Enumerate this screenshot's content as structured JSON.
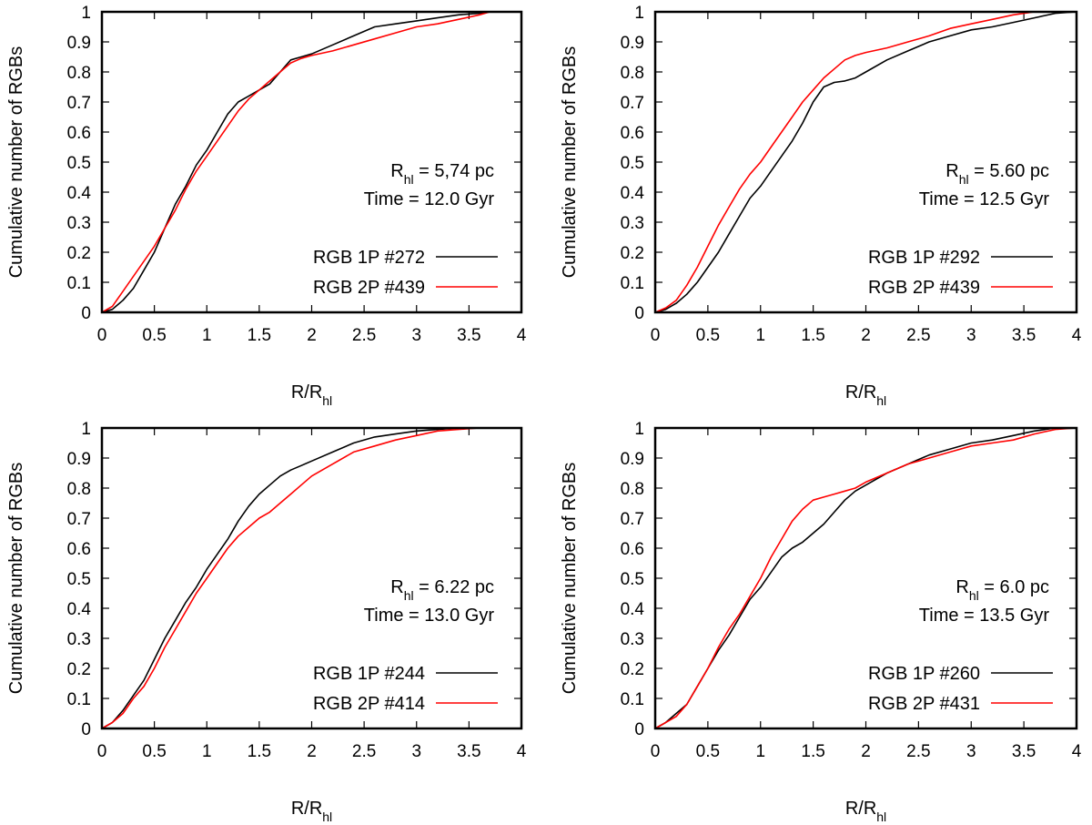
{
  "figure": {
    "background": "#ffffff"
  },
  "chart_data": [
    {
      "type": "line",
      "panel": "top-left",
      "xlabel": "R/R",
      "xlabel_sub": "hl",
      "ylabel": "Cumulative number of RGBs",
      "xlim": [
        0,
        4
      ],
      "ylim": [
        0,
        1
      ],
      "xticks": [
        0,
        0.5,
        1,
        1.5,
        2,
        2.5,
        3,
        3.5,
        4
      ],
      "xtick_labels": [
        "0",
        "0.5",
        "1",
        "1.5",
        "2",
        "2.5",
        "3",
        "3.5",
        "4"
      ],
      "yticks": [
        0,
        0.1,
        0.2,
        0.3,
        0.4,
        0.5,
        0.6,
        0.7,
        0.8,
        0.9,
        1
      ],
      "ytick_labels": [
        "0",
        "0.1",
        "0.2",
        "0.3",
        "0.4",
        "0.5",
        "0.6",
        "0.7",
        "0.8",
        "0.9",
        "1"
      ],
      "annotation": {
        "r_prefix": "R",
        "r_sub": "hl",
        "r_value": " = 5,74 pc",
        "time": "Time = 12.0 Gyr"
      },
      "legend_position": "middle-right",
      "series": [
        {
          "name": "RGB 1P #272",
          "color": "#000000",
          "x": [
            0,
            0.1,
            0.2,
            0.3,
            0.4,
            0.5,
            0.6,
            0.7,
            0.8,
            0.9,
            1.0,
            1.1,
            1.2,
            1.3,
            1.4,
            1.5,
            1.6,
            1.7,
            1.8,
            1.9,
            2.0,
            2.2,
            2.4,
            2.6,
            2.8,
            3.0,
            3.2,
            3.4,
            3.6,
            3.7,
            3.8,
            4.0
          ],
          "y": [
            0,
            0.01,
            0.04,
            0.08,
            0.14,
            0.2,
            0.28,
            0.36,
            0.42,
            0.49,
            0.54,
            0.6,
            0.66,
            0.7,
            0.72,
            0.74,
            0.76,
            0.8,
            0.84,
            0.85,
            0.86,
            0.89,
            0.92,
            0.95,
            0.96,
            0.97,
            0.98,
            0.99,
            0.995,
            1.0,
            1.0,
            1.0
          ]
        },
        {
          "name": "RGB 2P #439",
          "color": "#ff0000",
          "x": [
            0,
            0.1,
            0.2,
            0.3,
            0.4,
            0.5,
            0.6,
            0.7,
            0.8,
            0.9,
            1.0,
            1.1,
            1.2,
            1.3,
            1.4,
            1.5,
            1.6,
            1.7,
            1.8,
            1.9,
            2.0,
            2.2,
            2.4,
            2.6,
            2.8,
            3.0,
            3.2,
            3.4,
            3.6,
            3.7,
            3.8,
            4.0
          ],
          "y": [
            0,
            0.02,
            0.07,
            0.12,
            0.17,
            0.22,
            0.28,
            0.34,
            0.41,
            0.47,
            0.52,
            0.57,
            0.62,
            0.67,
            0.71,
            0.74,
            0.77,
            0.8,
            0.83,
            0.845,
            0.855,
            0.87,
            0.89,
            0.91,
            0.93,
            0.95,
            0.96,
            0.975,
            0.99,
            1.0,
            1.0,
            1.0
          ]
        }
      ]
    },
    {
      "type": "line",
      "panel": "top-right",
      "xlabel": "R/R",
      "xlabel_sub": "hl",
      "ylabel": "Cumulative number of RGBs",
      "xlim": [
        0,
        4
      ],
      "ylim": [
        0,
        1
      ],
      "xticks": [
        0,
        0.5,
        1,
        1.5,
        2,
        2.5,
        3,
        3.5,
        4
      ],
      "xtick_labels": [
        "0",
        "0.5",
        "1",
        "1.5",
        "2",
        "2.5",
        "3",
        "3.5",
        "4"
      ],
      "yticks": [
        0,
        0.1,
        0.2,
        0.3,
        0.4,
        0.5,
        0.6,
        0.7,
        0.8,
        0.9,
        1
      ],
      "ytick_labels": [
        "0",
        "0.1",
        "0.2",
        "0.3",
        "0.4",
        "0.5",
        "0.6",
        "0.7",
        "0.8",
        "0.9",
        "1"
      ],
      "annotation": {
        "r_prefix": "R",
        "r_sub": "hl",
        "r_value": " = 5.60 pc",
        "time": "Time = 12.5 Gyr"
      },
      "legend_position": "middle-right",
      "series": [
        {
          "name": "RGB 1P #292",
          "color": "#000000",
          "x": [
            0,
            0.1,
            0.2,
            0.3,
            0.4,
            0.5,
            0.6,
            0.7,
            0.8,
            0.9,
            1.0,
            1.1,
            1.2,
            1.3,
            1.4,
            1.5,
            1.6,
            1.7,
            1.8,
            1.9,
            2.0,
            2.2,
            2.4,
            2.6,
            2.8,
            3.0,
            3.2,
            3.4,
            3.6,
            3.8,
            4.0
          ],
          "y": [
            0,
            0.01,
            0.03,
            0.06,
            0.1,
            0.15,
            0.2,
            0.26,
            0.32,
            0.38,
            0.42,
            0.47,
            0.52,
            0.57,
            0.63,
            0.7,
            0.75,
            0.765,
            0.77,
            0.78,
            0.8,
            0.84,
            0.87,
            0.9,
            0.92,
            0.94,
            0.95,
            0.965,
            0.98,
            0.995,
            1.0
          ]
        },
        {
          "name": "RGB 2P #439",
          "color": "#ff0000",
          "x": [
            0,
            0.1,
            0.2,
            0.3,
            0.4,
            0.5,
            0.6,
            0.7,
            0.8,
            0.9,
            1.0,
            1.1,
            1.2,
            1.3,
            1.4,
            1.5,
            1.6,
            1.7,
            1.8,
            1.9,
            2.0,
            2.2,
            2.4,
            2.6,
            2.8,
            3.0,
            3.2,
            3.4,
            3.6,
            3.8,
            4.0
          ],
          "y": [
            0,
            0.015,
            0.04,
            0.09,
            0.15,
            0.22,
            0.29,
            0.35,
            0.41,
            0.46,
            0.5,
            0.55,
            0.6,
            0.65,
            0.7,
            0.74,
            0.78,
            0.81,
            0.84,
            0.855,
            0.865,
            0.88,
            0.9,
            0.92,
            0.945,
            0.96,
            0.975,
            0.99,
            1.0,
            1.0,
            1.0
          ]
        }
      ]
    },
    {
      "type": "line",
      "panel": "bottom-left",
      "xlabel": "R/R",
      "xlabel_sub": "hl",
      "ylabel": "Cumulative number of RGBs",
      "xlim": [
        0,
        4
      ],
      "ylim": [
        0,
        1
      ],
      "xticks": [
        0,
        0.5,
        1,
        1.5,
        2,
        2.5,
        3,
        3.5,
        4
      ],
      "xtick_labels": [
        "0",
        "0.5",
        "1",
        "1.5",
        "2",
        "2.5",
        "3",
        "3.5",
        "4"
      ],
      "yticks": [
        0,
        0.1,
        0.2,
        0.3,
        0.4,
        0.5,
        0.6,
        0.7,
        0.8,
        0.9,
        1
      ],
      "ytick_labels": [
        "0",
        "0.1",
        "0.2",
        "0.3",
        "0.4",
        "0.5",
        "0.6",
        "0.7",
        "0.8",
        "0.9",
        "1"
      ],
      "annotation": {
        "r_prefix": "R",
        "r_sub": "hl",
        "r_value": " = 6.22 pc",
        "time": "Time = 13.0 Gyr"
      },
      "legend_position": "lower-right",
      "series": [
        {
          "name": "RGB 1P #244",
          "color": "#000000",
          "x": [
            0,
            0.1,
            0.2,
            0.3,
            0.4,
            0.5,
            0.6,
            0.7,
            0.8,
            0.9,
            1.0,
            1.1,
            1.2,
            1.3,
            1.4,
            1.5,
            1.6,
            1.7,
            1.8,
            1.9,
            2.0,
            2.2,
            2.4,
            2.6,
            2.8,
            3.0,
            3.2,
            3.4,
            3.6,
            4.0
          ],
          "y": [
            0,
            0.02,
            0.06,
            0.11,
            0.16,
            0.23,
            0.3,
            0.36,
            0.42,
            0.47,
            0.53,
            0.58,
            0.63,
            0.69,
            0.74,
            0.78,
            0.81,
            0.84,
            0.86,
            0.875,
            0.89,
            0.92,
            0.95,
            0.97,
            0.98,
            0.99,
            0.995,
            1.0,
            1.0,
            1.0
          ]
        },
        {
          "name": "RGB 2P #414",
          "color": "#ff0000",
          "x": [
            0,
            0.1,
            0.2,
            0.3,
            0.4,
            0.5,
            0.6,
            0.7,
            0.8,
            0.9,
            1.0,
            1.1,
            1.2,
            1.3,
            1.4,
            1.5,
            1.6,
            1.7,
            1.8,
            1.9,
            2.0,
            2.2,
            2.4,
            2.6,
            2.8,
            3.0,
            3.2,
            3.4,
            3.6,
            4.0
          ],
          "y": [
            0,
            0.02,
            0.05,
            0.1,
            0.14,
            0.2,
            0.27,
            0.33,
            0.39,
            0.45,
            0.5,
            0.55,
            0.6,
            0.64,
            0.67,
            0.7,
            0.72,
            0.75,
            0.78,
            0.81,
            0.84,
            0.88,
            0.92,
            0.94,
            0.96,
            0.975,
            0.99,
            0.995,
            1.0,
            1.0
          ]
        }
      ]
    },
    {
      "type": "line",
      "panel": "bottom-right",
      "xlabel": "R/R",
      "xlabel_sub": "hl",
      "ylabel": "Cumulative number of RGBs",
      "xlim": [
        0,
        4
      ],
      "ylim": [
        0,
        1
      ],
      "xticks": [
        0,
        0.5,
        1,
        1.5,
        2,
        2.5,
        3,
        3.5,
        4
      ],
      "xtick_labels": [
        "0",
        "0.5",
        "1",
        "1.5",
        "2",
        "2.5",
        "3",
        "3.5",
        "4"
      ],
      "yticks": [
        0,
        0.1,
        0.2,
        0.3,
        0.4,
        0.5,
        0.6,
        0.7,
        0.8,
        0.9,
        1
      ],
      "ytick_labels": [
        "0",
        "0.1",
        "0.2",
        "0.3",
        "0.4",
        "0.5",
        "0.6",
        "0.7",
        "0.8",
        "0.9",
        "1"
      ],
      "annotation": {
        "r_prefix": "R",
        "r_sub": "hl",
        "r_value": " = 6.0 pc",
        "time": "Time = 13.5 Gyr"
      },
      "legend_position": "lower-right",
      "series": [
        {
          "name": "RGB 1P #260",
          "color": "#000000",
          "x": [
            0,
            0.1,
            0.2,
            0.3,
            0.4,
            0.5,
            0.6,
            0.7,
            0.8,
            0.9,
            1.0,
            1.1,
            1.2,
            1.3,
            1.4,
            1.5,
            1.6,
            1.7,
            1.8,
            1.9,
            2.0,
            2.2,
            2.4,
            2.6,
            2.8,
            3.0,
            3.2,
            3.4,
            3.6,
            3.8,
            4.0
          ],
          "y": [
            0,
            0.02,
            0.05,
            0.08,
            0.14,
            0.2,
            0.26,
            0.31,
            0.37,
            0.43,
            0.47,
            0.52,
            0.57,
            0.6,
            0.62,
            0.65,
            0.68,
            0.72,
            0.76,
            0.79,
            0.81,
            0.85,
            0.88,
            0.91,
            0.93,
            0.95,
            0.96,
            0.975,
            0.99,
            1.0,
            1.0
          ]
        },
        {
          "name": "RGB 2P #431",
          "color": "#ff0000",
          "x": [
            0,
            0.1,
            0.2,
            0.3,
            0.4,
            0.5,
            0.6,
            0.7,
            0.8,
            0.9,
            1.0,
            1.1,
            1.2,
            1.3,
            1.4,
            1.5,
            1.6,
            1.7,
            1.8,
            1.9,
            2.0,
            2.2,
            2.4,
            2.6,
            2.8,
            3.0,
            3.2,
            3.4,
            3.6,
            3.8,
            4.0
          ],
          "y": [
            0,
            0.02,
            0.04,
            0.08,
            0.14,
            0.2,
            0.27,
            0.33,
            0.38,
            0.44,
            0.5,
            0.57,
            0.63,
            0.69,
            0.73,
            0.76,
            0.77,
            0.78,
            0.79,
            0.8,
            0.82,
            0.85,
            0.88,
            0.9,
            0.92,
            0.94,
            0.95,
            0.96,
            0.98,
            0.995,
            1.0
          ]
        }
      ]
    }
  ]
}
